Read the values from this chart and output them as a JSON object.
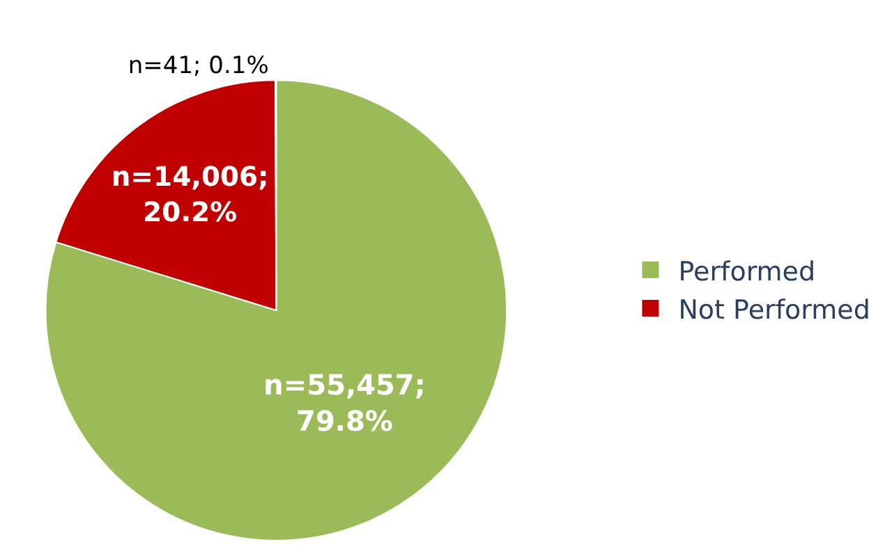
{
  "chart_data": {
    "type": "pie",
    "categories": [
      "Performed",
      "Not Performed",
      null
    ],
    "values": [
      55457,
      14006,
      41
    ],
    "value_labels": [
      "n=55,457; 79.8%",
      "n=14,006; 20.2%",
      "n=41; 0.1%"
    ],
    "colors": [
      "#9bbb59",
      "#c00000",
      "#4f81bd"
    ],
    "legend": "right"
  }
}
